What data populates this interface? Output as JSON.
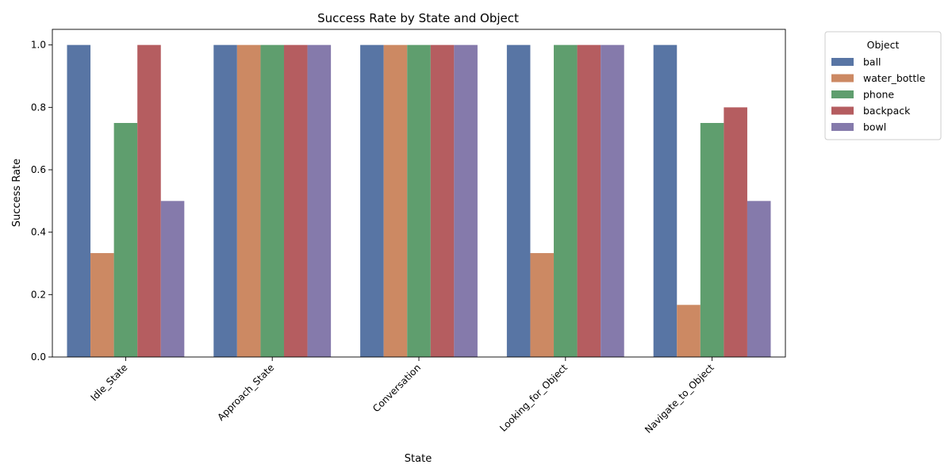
{
  "chart_data": {
    "type": "bar",
    "title": "Success Rate by State and Object",
    "xlabel": "State",
    "ylabel": "Success Rate",
    "ylim": [
      0,
      1.05
    ],
    "yticks": [
      "0.0",
      "0.2",
      "0.4",
      "0.6",
      "0.8",
      "1.0"
    ],
    "grid": false,
    "legend_title": "Object",
    "legend_position": "outside-top-right",
    "categories": [
      "Idle_State",
      "Approach_State",
      "Conversation",
      "Looking_for_Object",
      "Navigate_to_Object"
    ],
    "series": [
      {
        "name": " ball",
        "color": "#5875a4",
        "values": [
          1.0,
          1.0,
          1.0,
          1.0,
          1.0
        ]
      },
      {
        "name": " water_bottle",
        "color": "#cc8963",
        "values": [
          0.333,
          1.0,
          1.0,
          0.333,
          0.167
        ]
      },
      {
        "name": " phone",
        "color": "#5f9e6e",
        "values": [
          0.75,
          1.0,
          1.0,
          1.0,
          0.75
        ]
      },
      {
        "name": " backpack",
        "color": "#b55d60",
        "values": [
          1.0,
          1.0,
          1.0,
          1.0,
          0.8
        ]
      },
      {
        "name": " bowl",
        "color": "#857aab",
        "values": [
          0.5,
          1.0,
          1.0,
          1.0,
          0.5
        ]
      }
    ]
  }
}
